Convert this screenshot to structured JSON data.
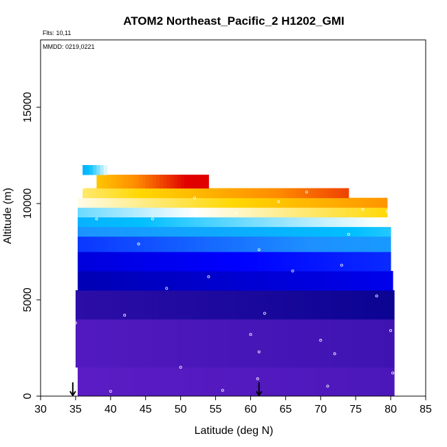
{
  "chart_data": {
    "type": "heatmap",
    "title": "ATOM2 Northeast_Pacific_2 H1202_GMI",
    "annotations": [
      "Flts: 10,11",
      "MMDD: 0219,0221"
    ],
    "xlabel": "Latitude (deg N)",
    "ylabel": "Altitude (m)",
    "xlim": [
      30,
      85
    ],
    "ylim": [
      0,
      18500
    ],
    "x_ticks": [
      30,
      35,
      40,
      45,
      50,
      55,
      60,
      65,
      70,
      75,
      80,
      85
    ],
    "y_ticks": [
      0,
      5000,
      10000,
      15000
    ],
    "grid": false,
    "legend": "none",
    "colors": {
      "violet": "#8a2be2",
      "dark_blue": "#00008b",
      "blue": "#0000ff",
      "light_blue": "#1e90ff",
      "cyan": "#00bfff",
      "white": "#ffffff",
      "yellow": "#ffd700",
      "orange": "#ff8c00",
      "red": "#e00000",
      "flight_track": "#ffffff",
      "arrow": "#000000"
    },
    "layers": [
      {
        "lat": [
          35.3,
          80.5
        ],
        "alt": [
          0,
          1500
        ],
        "value": 0.05
      },
      {
        "lat": [
          35.0,
          80.5
        ],
        "alt": [
          1500,
          4000
        ],
        "value": 0.06
      },
      {
        "lat": [
          35.0,
          80.5
        ],
        "alt": [
          4000,
          5500
        ],
        "value": 0.1
      },
      {
        "lat": [
          35.3,
          80.3
        ],
        "alt": [
          5500,
          6500
        ],
        "value": 0.2
      },
      {
        "lat": [
          35.3,
          80.0
        ],
        "alt": [
          6500,
          7500
        ],
        "value": 0.25
      },
      {
        "lat": [
          35.3,
          80.0
        ],
        "alt": [
          7500,
          8300
        ],
        "value": 0.35
      },
      {
        "lat": [
          35.3,
          80.0
        ],
        "alt": [
          8300,
          8800
        ],
        "value": 0.45
      },
      {
        "lat": [
          35.3,
          80.0
        ],
        "alt": [
          8800,
          9300
        ],
        "value": 0.55
      },
      {
        "lat": [
          35.3,
          79.5
        ],
        "alt": [
          9300,
          9800
        ],
        "value": 0.65
      },
      {
        "lat": [
          35.3,
          79.5
        ],
        "alt": [
          9800,
          10300
        ],
        "value": 0.75
      },
      {
        "lat": [
          36.0,
          74.0
        ],
        "alt": [
          10300,
          10800
        ],
        "value": 0.82
      },
      {
        "lat": [
          38.0,
          54.0
        ],
        "alt": [
          10800,
          11500
        ],
        "value": 0.92
      },
      {
        "lat": [
          36.0,
          39.5
        ],
        "alt": [
          11500,
          12000
        ],
        "value": 0.55
      }
    ],
    "flight_track": {
      "latitude": [
        34.6,
        35.0,
        36.0,
        38.0,
        40.0,
        42.0,
        44.0,
        46.0,
        48.0,
        50.0,
        52.0,
        54.0,
        56.0,
        58.0,
        60.0,
        61.0,
        61.2,
        61.2,
        62.0,
        64.0,
        66.0,
        68.0,
        70.0,
        71.0,
        72.0,
        73.0,
        74.0,
        76.0,
        78.0,
        79.5,
        80.0,
        80.3
      ],
      "altitude": [
        1600,
        3800,
        10800,
        9200,
        250,
        4200,
        7900,
        9200,
        5600,
        1500,
        10300,
        6200,
        300,
        9500,
        3200,
        900,
        2300,
        7600,
        4300,
        10100,
        6500,
        10600,
        2900,
        520,
        2200,
        6800,
        8400,
        9700,
        5200,
        9600,
        3400,
        1200
      ]
    },
    "arrows": [
      {
        "latitude": 34.6,
        "label": ""
      },
      {
        "latitude": 61.2,
        "label": ""
      }
    ]
  }
}
